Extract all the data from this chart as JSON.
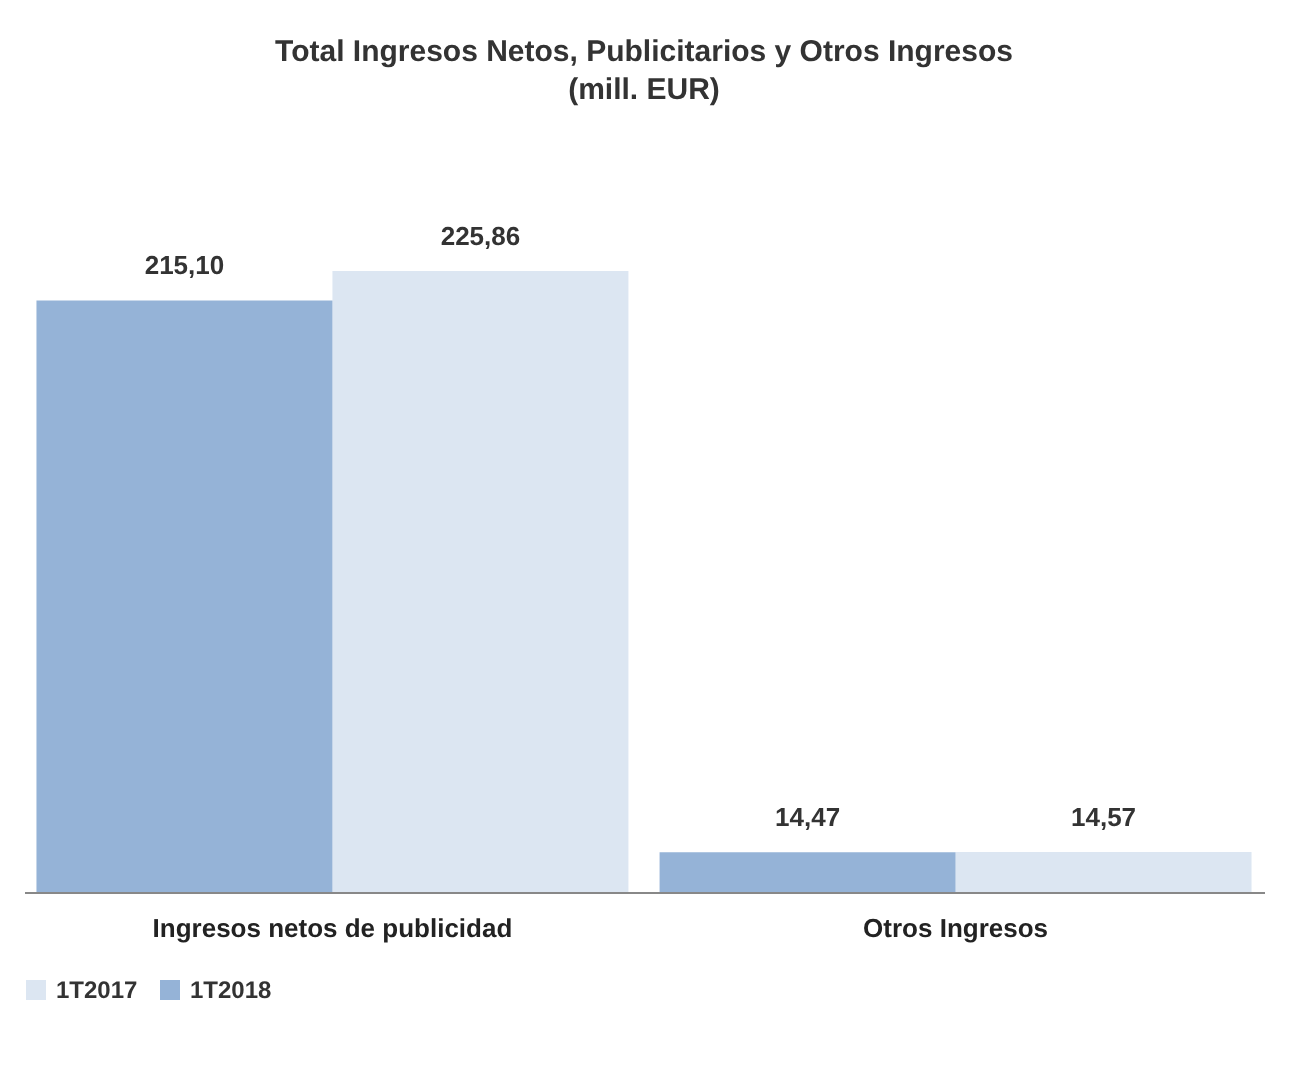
{
  "chart_data": {
    "type": "bar",
    "title": "Total Ingresos Netos, Publicitarios y Otros Ingresos",
    "subtitle": "(mill. EUR)",
    "categories": [
      "Ingresos netos de publicidad",
      "Otros Ingresos"
    ],
    "series": [
      {
        "name": "1T2017",
        "color": "#dce6f2",
        "values": [
          225.86,
          14.57
        ],
        "value_labels": [
          "225,86",
          "14,57"
        ]
      },
      {
        "name": "1T2018",
        "color": "#95b3d7",
        "values": [
          215.1,
          14.47
        ],
        "value_labels": [
          "215,10",
          "14,47"
        ]
      }
    ],
    "legend": "bottom"
  }
}
